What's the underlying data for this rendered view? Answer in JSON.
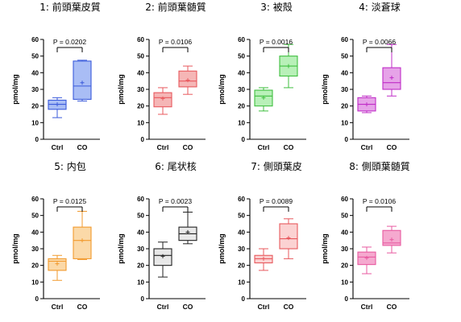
{
  "chart_data": [
    {
      "type": "box",
      "title": "1: 前頭葉皮質",
      "ylabel": "pmol/mg",
      "ylim": [
        0,
        60
      ],
      "yticks": [
        "0",
        "10",
        "20",
        "30",
        "40",
        "50",
        "60"
      ],
      "categories": [
        "Ctrl",
        "CO"
      ],
      "color": "#3b5bdb",
      "fill": "#a9bdf5",
      "significance": "P = 0.0202",
      "boxes": [
        {
          "min": 13,
          "q1": 18,
          "median": 21,
          "q3": 23.5,
          "max": 25,
          "mean": 21
        },
        {
          "min": 23,
          "q1": 24,
          "median": 32,
          "q3": 47,
          "max": 47.5,
          "mean": 34
        }
      ]
    },
    {
      "type": "box",
      "title": "2: 前頭葉髄質",
      "ylabel": "pmol/mg",
      "ylim": [
        0,
        60
      ],
      "yticks": [
        "0",
        "10",
        "20",
        "30",
        "40",
        "50",
        "60"
      ],
      "categories": [
        "Ctrl",
        "CO"
      ],
      "color": "#e8595e",
      "fill": "#f5b6b6",
      "significance": "P = 0.0106",
      "boxes": [
        {
          "min": 15,
          "q1": 19.5,
          "median": 25,
          "q3": 28,
          "max": 31,
          "mean": 24.5
        },
        {
          "min": 27,
          "q1": 31.5,
          "median": 35,
          "q3": 41,
          "max": 44,
          "mean": 35.5
        }
      ]
    },
    {
      "type": "box",
      "title": "3: 被殻",
      "ylabel": "pmol/mg",
      "ylim": [
        0,
        60
      ],
      "yticks": [
        "0",
        "10",
        "20",
        "30",
        "40",
        "50",
        "60"
      ],
      "categories": [
        "Ctrl",
        "CO"
      ],
      "color": "#3fbf3f",
      "fill": "#b8f0b8",
      "significance": "P = 0.0016",
      "boxes": [
        {
          "min": 17,
          "q1": 20,
          "median": 26,
          "q3": 29.5,
          "max": 31,
          "mean": 25
        },
        {
          "min": 31,
          "q1": 38,
          "median": 44,
          "q3": 50,
          "max": 57,
          "mean": 44
        }
      ]
    },
    {
      "type": "box",
      "title": "4: 淡蒼球",
      "ylabel": "pmol/mg",
      "ylim": [
        0,
        60
      ],
      "yticks": [
        "0",
        "10",
        "20",
        "30",
        "40",
        "50",
        "60"
      ],
      "categories": [
        "Ctrl",
        "CO"
      ],
      "color": "#c02cc7",
      "fill": "#e6a3e8",
      "significance": "P = 0.0066",
      "boxes": [
        {
          "min": 16,
          "q1": 17,
          "median": 21,
          "q3": 25,
          "max": 26,
          "mean": 21
        },
        {
          "min": 26,
          "q1": 30,
          "median": 34,
          "q3": 43,
          "max": 57,
          "mean": 37
        }
      ]
    },
    {
      "type": "box",
      "title": "5: 内包",
      "ylabel": "pmol/mg",
      "ylim": [
        0,
        60
      ],
      "yticks": [
        "0",
        "10",
        "20",
        "30",
        "40",
        "50",
        "60"
      ],
      "categories": [
        "Ctrl",
        "CO"
      ],
      "color": "#f29a2e",
      "fill": "#fbd9a8",
      "significance": "P = 0.0125",
      "boxes": [
        {
          "min": 11,
          "q1": 17,
          "median": 22.5,
          "q3": 24,
          "max": 26,
          "mean": 21
        },
        {
          "min": 23.5,
          "q1": 24,
          "median": 35,
          "q3": 43,
          "max": 52.5,
          "mean": 35
        }
      ]
    },
    {
      "type": "box",
      "title": "6: 尾状核",
      "ylabel": "pmol/mg",
      "ylim": [
        0,
        60
      ],
      "yticks": [
        "0",
        "10",
        "20",
        "30",
        "40",
        "50",
        "60"
      ],
      "categories": [
        "Ctrl",
        "CO"
      ],
      "color": "#222222",
      "fill": "#e8e8e8",
      "significance": "P = 0.0023",
      "boxes": [
        {
          "min": 13,
          "q1": 20,
          "median": 26,
          "q3": 30,
          "max": 34,
          "mean": 25.5
        },
        {
          "min": 33,
          "q1": 35,
          "median": 39,
          "q3": 43,
          "max": 52,
          "mean": 40
        }
      ]
    },
    {
      "type": "box",
      "title": "7: 側頭葉皮",
      "ylabel": "pmol/mg",
      "ylim": [
        0,
        60
      ],
      "yticks": [
        "0",
        "10",
        "20",
        "30",
        "40",
        "50",
        "60"
      ],
      "categories": [
        "Ctrl",
        "CO"
      ],
      "color": "#e8595e",
      "fill": "#fbd2d2",
      "significance": "P = 0.0089",
      "boxes": [
        {
          "min": 17,
          "q1": 21.5,
          "median": 24,
          "q3": 26,
          "max": 30,
          "mean": 24
        },
        {
          "min": 24,
          "q1": 30,
          "median": 36,
          "q3": 45,
          "max": 48,
          "mean": 36.5
        }
      ]
    },
    {
      "type": "box",
      "title": "8: 側頭葉髄質",
      "ylabel": "pmol/mg",
      "ylim": [
        0,
        60
      ],
      "yticks": [
        "0",
        "10",
        "20",
        "30",
        "40",
        "50",
        "60"
      ],
      "categories": [
        "Ctrl",
        "CO"
      ],
      "color": "#e85aa0",
      "fill": "#f5a9cf",
      "significance": "P = 0.0106",
      "boxes": [
        {
          "min": 15,
          "q1": 20.5,
          "median": 25,
          "q3": 28,
          "max": 31,
          "mean": 24.5
        },
        {
          "min": 27.5,
          "q1": 32,
          "median": 33.5,
          "q3": 41,
          "max": 43.5,
          "mean": 35.5
        }
      ]
    }
  ]
}
